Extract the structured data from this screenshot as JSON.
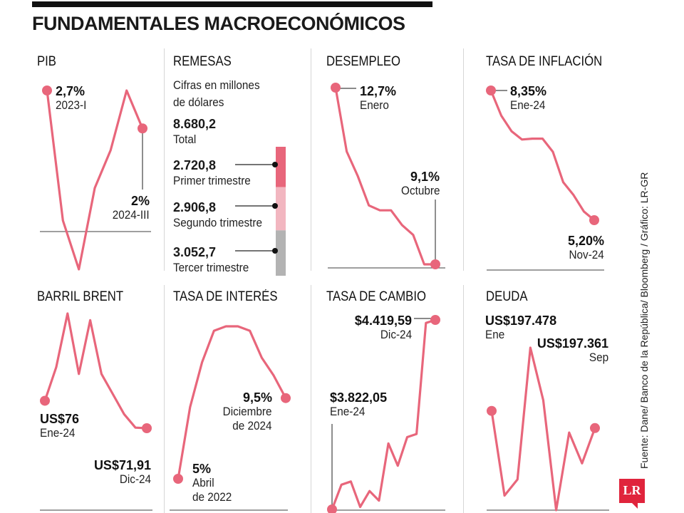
{
  "title": "FUNDAMENTALES MACROECONÓMICOS",
  "source": "Fuente: Dane/ Banco de la República/ Bloomberg / Gráfico: LR-GR",
  "logo": "LR",
  "colors": {
    "line": "#e8667b",
    "dot": "#e8667b",
    "text": "#1a1a1a",
    "axis": "#666666"
  },
  "panels": {
    "pib": {
      "title": "PIB",
      "start": {
        "value": "2,7%",
        "sub": "2023-I"
      },
      "end": {
        "value": "2%",
        "sub": "2024-III"
      }
    },
    "remesas": {
      "title": "REMESAS",
      "subtitle_1": "Cifras en millones",
      "subtitle_2": "de dólares",
      "total_value": "8.680,2",
      "total_label": "Total",
      "items": [
        {
          "value": "2.720,8",
          "label": "Primer trimestre",
          "color": "#e8667b"
        },
        {
          "value": "2.906,8",
          "label": "Segundo trimestre",
          "color": "#f2b6c0"
        },
        {
          "value": "3.052,7",
          "label": "Tercer trimestre",
          "color": "#b3b3b3"
        }
      ]
    },
    "desempleo": {
      "title": "DESEMPLEO",
      "start": {
        "value": "12,7%",
        "sub": "Enero"
      },
      "end": {
        "value": "9,1%",
        "sub": "Octubre"
      }
    },
    "inflacion": {
      "title": "TASA DE INFLACIÓN",
      "start": {
        "value": "8,35%",
        "sub": "Ene-24"
      },
      "end": {
        "value": "5,20%",
        "sub": "Nov-24"
      }
    },
    "brent": {
      "title": "BARRIL BRENT",
      "start": {
        "value": "US$76",
        "sub": "Ene-24"
      },
      "end": {
        "value": "US$71,91",
        "sub": "Dic-24"
      }
    },
    "interes": {
      "title": "TASA DE INTERÉS",
      "start": {
        "value": "5%",
        "sub": "Abril",
        "sub2": "de 2022"
      },
      "end": {
        "value": "9,5%",
        "sub": "Diciembre",
        "sub2": "de 2024"
      }
    },
    "cambio": {
      "title": "TASA DE CAMBIO",
      "start": {
        "value": "$3.822,05",
        "sub": "Ene-24"
      },
      "end": {
        "value": "$4.419,59",
        "sub": "Dic-24"
      }
    },
    "deuda": {
      "title": "DEUDA",
      "start": {
        "value": "US$197.478",
        "sub": "Ene"
      },
      "end": {
        "value": "US$197.361",
        "sub": "Sep"
      }
    }
  },
  "chart_data": [
    {
      "type": "line",
      "name": "PIB",
      "unit": "%",
      "y": [
        2.7,
        0.3,
        -0.6,
        0.9,
        1.6,
        2.7,
        2.0
      ],
      "x_start": "2023-I",
      "x_end": "2024-III"
    },
    {
      "type": "bar",
      "name": "REMESAS",
      "unit": "millones de dólares",
      "categories": [
        "Primer trimestre",
        "Segundo trimestre",
        "Tercer trimestre"
      ],
      "values": [
        2720.8,
        2906.8,
        3052.7
      ],
      "total": 8680.2
    },
    {
      "type": "line",
      "name": "DESEMPLEO",
      "unit": "%",
      "y": [
        12.7,
        11.4,
        10.9,
        10.3,
        10.2,
        10.2,
        9.9,
        9.7,
        9.1,
        9.1
      ],
      "x_start": "Enero",
      "x_end": "Octubre"
    },
    {
      "type": "line",
      "name": "TASA DE INFLACIÓN",
      "unit": "%",
      "y": [
        8.35,
        7.74,
        7.36,
        7.16,
        7.18,
        7.18,
        6.86,
        6.12,
        5.81,
        5.41,
        5.2
      ],
      "x_start": "Ene-24",
      "x_end": "Nov-24"
    },
    {
      "type": "line",
      "name": "BARRIL BRENT",
      "unit": "US$",
      "y": [
        76,
        81,
        89,
        80,
        88,
        80,
        77,
        74,
        72,
        71.91
      ],
      "x_start": "Ene-24",
      "x_end": "Dic-24"
    },
    {
      "type": "line",
      "name": "TASA DE INTERÉS",
      "unit": "%",
      "y": [
        5,
        9,
        11.5,
        13.25,
        13.5,
        13.5,
        13.25,
        11.75,
        10.75,
        9.5
      ],
      "x_start": "Abril de 2022",
      "x_end": "Diciembre de 2024"
    },
    {
      "type": "line",
      "name": "TASA DE CAMBIO",
      "unit": "$",
      "y": [
        3822.05,
        3900,
        3910,
        3830,
        3880,
        3850,
        4030,
        3960,
        4050,
        4060,
        4410,
        4419.59
      ],
      "x_start": "Ene-24",
      "x_end": "Dic-24"
    },
    {
      "type": "line",
      "name": "DEUDA",
      "unit": "US$",
      "y": [
        197478,
        196900,
        197010,
        197910,
        197550,
        196800,
        197330,
        197120,
        197361
      ],
      "x_start": "Ene",
      "x_end": "Sep"
    }
  ]
}
